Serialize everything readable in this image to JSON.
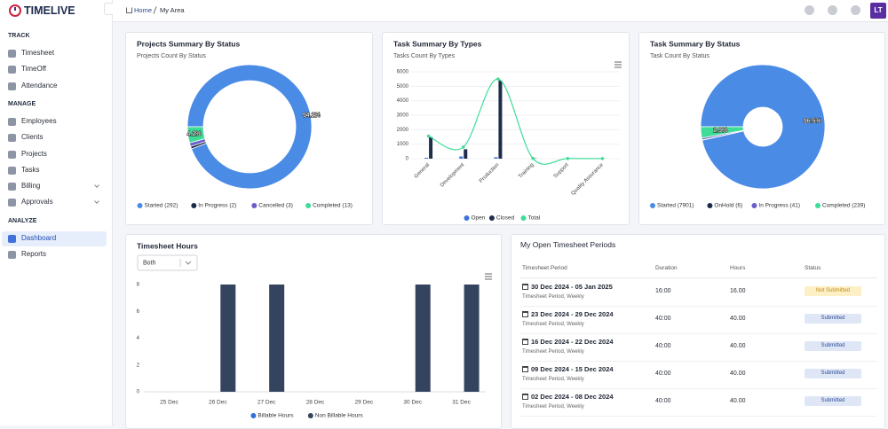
{
  "logo": "TIMELIVE",
  "breadcrumb": [
    "Home",
    "My Area"
  ],
  "avatar": "LT",
  "sidebar": [
    {
      "heading": "TRACK",
      "items": [
        "Timesheet",
        "TimeOff",
        "Attendance"
      ]
    },
    {
      "heading": "MANAGE",
      "items": [
        "Employees",
        "Clients",
        "Projects",
        "Tasks",
        "Billing",
        "Approvals"
      ]
    },
    {
      "heading": "ANALYZE",
      "items": [
        "Dashboard",
        "Reports"
      ]
    }
  ],
  "chart_data": [
    {
      "type": "donut",
      "title": "Projects Summary By Status",
      "subtitle": "Projects Count By Status",
      "categories": [
        "Started (292)",
        "In Progress (2)",
        "Cancelled (3)",
        "Completed (13)"
      ],
      "values": [
        292,
        2,
        3,
        13
      ],
      "value_labels": [
        "94.2%",
        null,
        null,
        "4.2%"
      ],
      "colors": [
        "#4a8be6",
        "#1c2a4a",
        "#6a5fc9",
        "#3ddc97"
      ]
    },
    {
      "type": "combo",
      "title": "Task Summary By Types",
      "subtitle": "Tasks Count By Types",
      "categories": [
        "General",
        "Development",
        "Production",
        "Training",
        "Support",
        "Quality Assurance"
      ],
      "series": [
        {
          "name": "Open",
          "type": "bar",
          "color": "#3f73d9",
          "values": [
            60,
            150,
            100,
            0,
            0,
            0
          ]
        },
        {
          "name": "Closed",
          "type": "bar",
          "color": "#1f2d4d",
          "values": [
            1500,
            650,
            5400,
            20,
            10,
            5
          ]
        },
        {
          "name": "Total",
          "type": "line",
          "color": "#3ddc97",
          "values": [
            1560,
            800,
            5500,
            20,
            10,
            5
          ]
        }
      ],
      "ylim": [
        0,
        6000
      ],
      "yticks": [
        0,
        1000,
        2000,
        3000,
        4000,
        5000,
        6000
      ],
      "grid": true
    },
    {
      "type": "donut",
      "title": "Task Summary By Status",
      "subtitle": "Task Count By Status",
      "categories": [
        "Started (7901)",
        "OnHold (6)",
        "In Progress (41)",
        "Completed (239)"
      ],
      "values": [
        7901,
        6,
        41,
        239
      ],
      "value_labels": [
        "96.5%",
        null,
        null,
        "2.9%"
      ],
      "colors": [
        "#4a8be6",
        "#1c2a4a",
        "#6a5fc9",
        "#3ddc97"
      ]
    },
    {
      "type": "bar",
      "title": "Timesheet Hours",
      "filter": "Both",
      "categories": [
        "25 Dec",
        "26 Dec",
        "27 Dec",
        "28 Dec",
        "29 Dec",
        "30 Dec",
        "31 Dec"
      ],
      "series": [
        {
          "name": "Billable Hours",
          "color": "#2f6fd8",
          "values": [
            0,
            0,
            0,
            0,
            0,
            0,
            0
          ]
        },
        {
          "name": "Non Billable Hours",
          "color": "#34445f",
          "values": [
            0,
            8,
            8,
            0,
            0,
            8,
            8
          ]
        }
      ],
      "ylim": [
        0,
        8
      ],
      "yticks": [
        0,
        2,
        4,
        6,
        8
      ],
      "grid": false
    }
  ],
  "table": {
    "title": "My Open Timesheet Periods",
    "columns": [
      "Timesheet Period",
      "Duration",
      "Hours",
      "Status"
    ],
    "rows": [
      {
        "period": "30 Dec 2024 - 05 Jan 2025",
        "detail": "Timesheet Period, Weekly",
        "duration": "16:00",
        "hours": "16.00",
        "status": "Not Submitted",
        "badge_color": "#fdf0c4",
        "badge_text_color": "#c08a1e"
      },
      {
        "period": "23 Dec 2024 - 29 Dec 2024",
        "detail": "Timesheet Period, Weekly",
        "duration": "40:00",
        "hours": "40.00",
        "status": "Submitted",
        "badge_color": "#dfe7f7",
        "badge_text_color": "#2c4a94"
      },
      {
        "period": "16 Dec 2024 - 22 Dec 2024",
        "detail": "Timesheet Period, Weekly",
        "duration": "40:00",
        "hours": "40.00",
        "status": "Submitted",
        "badge_color": "#dfe7f7",
        "badge_text_color": "#2c4a94"
      },
      {
        "period": "09 Dec 2024 - 15 Dec 2024",
        "detail": "Timesheet Period, Weekly",
        "duration": "40:00",
        "hours": "40.00",
        "status": "Submitted",
        "badge_color": "#dfe7f7",
        "badge_text_color": "#2c4a94"
      },
      {
        "period": "02 Dec 2024 - 08 Dec 2024",
        "detail": "Timesheet Period, Weekly",
        "duration": "40:00",
        "hours": "40.00",
        "status": "Submitted",
        "badge_color": "#dfe7f7",
        "badge_text_color": "#2c4a94"
      }
    ]
  }
}
